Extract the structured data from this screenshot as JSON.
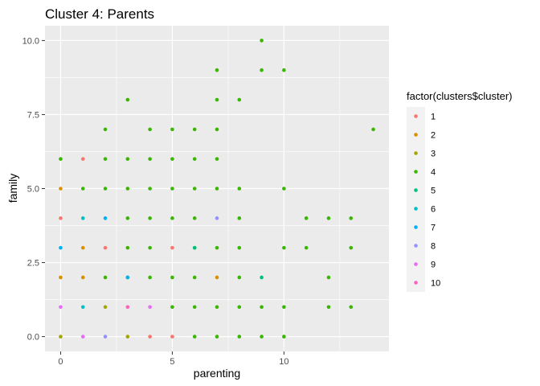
{
  "chart_data": {
    "type": "scatter",
    "title": "Cluster 4: Parents",
    "xlabel": "parenting",
    "ylabel": "family",
    "xlim": [
      -0.7,
      14.7
    ],
    "ylim": [
      -0.5,
      10.5
    ],
    "x_ticks": [
      0,
      5,
      10
    ],
    "x_tick_labels": [
      "0",
      "5",
      "10"
    ],
    "y_ticks": [
      0,
      2.5,
      5,
      7.5,
      10
    ],
    "y_tick_labels": [
      "0.0",
      "2.5",
      "5.0",
      "7.5",
      "10.0"
    ],
    "grid": true,
    "background": "#ebebeb",
    "legend": {
      "title": "factor(clusters$cluster)",
      "position": "right",
      "entries": [
        {
          "label": "1",
          "color": "#F8766D"
        },
        {
          "label": "2",
          "color": "#D89000"
        },
        {
          "label": "3",
          "color": "#A3A500"
        },
        {
          "label": "4",
          "color": "#39B600"
        },
        {
          "label": "5",
          "color": "#00BF7D"
        },
        {
          "label": "6",
          "color": "#00BFC4"
        },
        {
          "label": "7",
          "color": "#00B0F6"
        },
        {
          "label": "8",
          "color": "#9590FF"
        },
        {
          "label": "9",
          "color": "#E76BF3"
        },
        {
          "label": "10",
          "color": "#FF62BC"
        }
      ]
    },
    "series": [
      {
        "name": "1",
        "color": "#F8766D",
        "points": [
          [
            1,
            6
          ],
          [
            0,
            4
          ],
          [
            2,
            3
          ],
          [
            5,
            3
          ],
          [
            4,
            0
          ],
          [
            5,
            0
          ]
        ]
      },
      {
        "name": "2",
        "color": "#D89000",
        "points": [
          [
            0,
            5
          ],
          [
            1,
            3
          ],
          [
            0,
            2
          ],
          [
            1,
            2
          ],
          [
            7,
            2
          ]
        ]
      },
      {
        "name": "3",
        "color": "#A3A500",
        "points": [
          [
            2,
            1
          ],
          [
            0,
            0
          ],
          [
            3,
            0
          ]
        ]
      },
      {
        "name": "4",
        "color": "#39B600",
        "points": [
          [
            9,
            10
          ],
          [
            7,
            9
          ],
          [
            9,
            9
          ],
          [
            10,
            9
          ],
          [
            3,
            8
          ],
          [
            7,
            8
          ],
          [
            8,
            8
          ],
          [
            2,
            7
          ],
          [
            4,
            7
          ],
          [
            5,
            7
          ],
          [
            6,
            7
          ],
          [
            7,
            7
          ],
          [
            14,
            7
          ],
          [
            0,
            6
          ],
          [
            2,
            6
          ],
          [
            3,
            6
          ],
          [
            4,
            6
          ],
          [
            5,
            6
          ],
          [
            6,
            6
          ],
          [
            7,
            6
          ],
          [
            1,
            5
          ],
          [
            2,
            5
          ],
          [
            3,
            5
          ],
          [
            4,
            5
          ],
          [
            5,
            5
          ],
          [
            6,
            5
          ],
          [
            7,
            5
          ],
          [
            8,
            5
          ],
          [
            10,
            5
          ],
          [
            3,
            4
          ],
          [
            4,
            4
          ],
          [
            5,
            4
          ],
          [
            6,
            4
          ],
          [
            8,
            4
          ],
          [
            11,
            4
          ],
          [
            12,
            4
          ],
          [
            13,
            4
          ],
          [
            3,
            3
          ],
          [
            4,
            3
          ],
          [
            6,
            3
          ],
          [
            7,
            3
          ],
          [
            8,
            3
          ],
          [
            10,
            3
          ],
          [
            11,
            3
          ],
          [
            13,
            3
          ],
          [
            2,
            2
          ],
          [
            3,
            2
          ],
          [
            4,
            2
          ],
          [
            5,
            2
          ],
          [
            6,
            2
          ],
          [
            8,
            2
          ],
          [
            12,
            2
          ],
          [
            5,
            1
          ],
          [
            6,
            1
          ],
          [
            7,
            1
          ],
          [
            8,
            1
          ],
          [
            9,
            1
          ],
          [
            10,
            1
          ],
          [
            12,
            1
          ],
          [
            13,
            1
          ],
          [
            6,
            0
          ],
          [
            7,
            0
          ],
          [
            8,
            0
          ],
          [
            9,
            0
          ],
          [
            10,
            0
          ]
        ]
      },
      {
        "name": "5",
        "color": "#00BF7D",
        "points": [
          [
            6,
            3
          ],
          [
            9,
            2
          ]
        ]
      },
      {
        "name": "6",
        "color": "#00BFC4",
        "points": [
          [
            1,
            4
          ],
          [
            1,
            1
          ]
        ]
      },
      {
        "name": "7",
        "color": "#00B0F6",
        "points": [
          [
            2,
            4
          ],
          [
            0,
            3
          ],
          [
            3,
            2
          ]
        ]
      },
      {
        "name": "8",
        "color": "#9590FF",
        "points": [
          [
            7,
            4
          ],
          [
            2,
            0
          ]
        ]
      },
      {
        "name": "9",
        "color": "#E76BF3",
        "points": [
          [
            0,
            1
          ],
          [
            4,
            1
          ],
          [
            1,
            0
          ]
        ]
      },
      {
        "name": "10",
        "color": "#FF62BC",
        "points": [
          [
            3,
            1
          ]
        ]
      }
    ]
  }
}
